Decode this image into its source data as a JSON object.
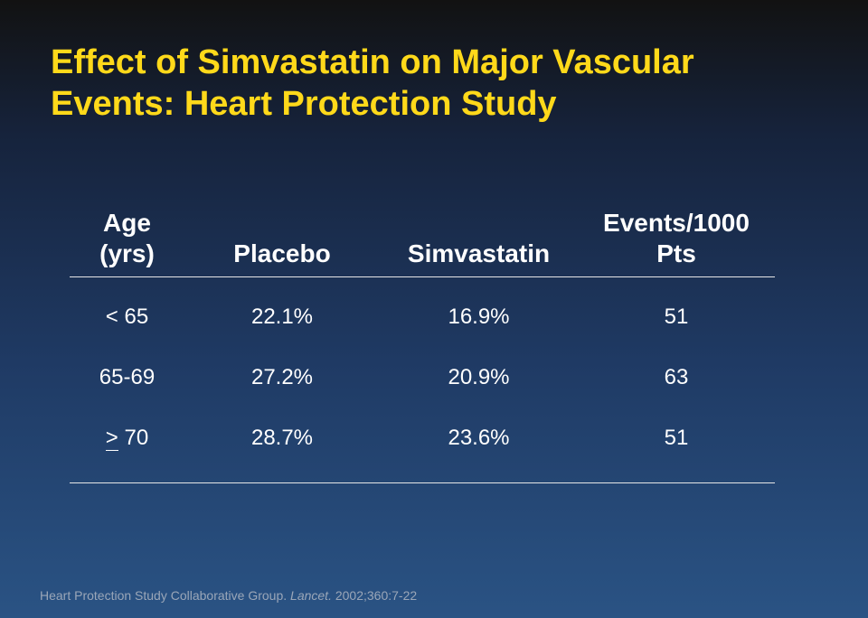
{
  "title": {
    "line1": "Effect of Simvastatin on Major Vascular",
    "line2": "Events: Heart Protection Study"
  },
  "table": {
    "headers": [
      {
        "line1": "Age",
        "line2": "(yrs)"
      },
      {
        "line1": "",
        "line2": "Placebo"
      },
      {
        "line1": "",
        "line2": "Simvastatin"
      },
      {
        "line1": "Events/1000",
        "line2": "Pts"
      }
    ],
    "rows": [
      {
        "age_prefix": "",
        "age": "< 65",
        "placebo": "22.1%",
        "simvastatin": "16.9%",
        "events": "51"
      },
      {
        "age_prefix": "",
        "age": "65-69",
        "placebo": "27.2%",
        "simvastatin": "20.9%",
        "events": "63"
      },
      {
        "age_prefix": ">",
        "age": " 70",
        "placebo": "28.7%",
        "simvastatin": "23.6%",
        "events": "51"
      }
    ]
  },
  "footnote": {
    "authors": "Heart Protection Study Collaborative Group. ",
    "journal": "Lancet.",
    "citation": " 2002;360:7-22"
  },
  "colors": {
    "title": "#ffd91a",
    "text": "#ffffff",
    "background_top": "#121212",
    "background_bottom": "#2a5384",
    "footnote": "#9aa6b8"
  }
}
